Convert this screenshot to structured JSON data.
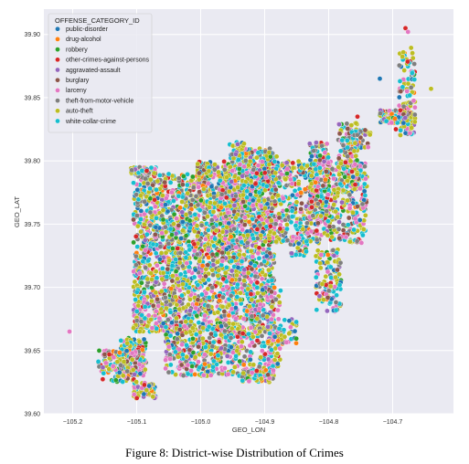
{
  "chart_data": {
    "type": "scatter",
    "title": "",
    "xlabel": "GEO_LON",
    "ylabel": "GEO_LAT",
    "xlim": [
      -105.245,
      -104.605
    ],
    "ylim": [
      39.6,
      39.92
    ],
    "xticks": [
      -105.2,
      -105.1,
      -105.0,
      -104.9,
      -104.8,
      -104.7
    ],
    "xtick_labels": [
      "−105.2",
      "−105.1",
      "−105.0",
      "−104.9",
      "−104.8",
      "−104.7"
    ],
    "yticks": [
      39.6,
      39.65,
      39.7,
      39.75,
      39.8,
      39.85,
      39.9
    ],
    "ytick_labels": [
      "39.60",
      "39.65",
      "39.70",
      "39.75",
      "39.80",
      "39.85",
      "39.90"
    ],
    "grid": true,
    "legend_title": "OFFENSE_CATEGORY_ID",
    "legend_position": "top-left",
    "background": "#eaeaf2",
    "series": [
      {
        "name": "public-disorder",
        "color": "#1f77b4"
      },
      {
        "name": "drug-alcohol",
        "color": "#ff7f0e"
      },
      {
        "name": "robbery",
        "color": "#2ca02c"
      },
      {
        "name": "other-crimes-against-persons",
        "color": "#d62728"
      },
      {
        "name": "aggravated-assault",
        "color": "#9467bd"
      },
      {
        "name": "burglary",
        "color": "#8c564b"
      },
      {
        "name": "larceny",
        "color": "#e377c2"
      },
      {
        "name": "theft-from-motor-vehicle",
        "color": "#7f7f7f"
      },
      {
        "name": "auto-theft",
        "color": "#bcbd22"
      },
      {
        "name": "white-collar-crime",
        "color": "#17becf"
      }
    ],
    "outliers": [
      {
        "x": -105.205,
        "y": 39.665,
        "series": "larceny"
      },
      {
        "x": -104.68,
        "y": 39.905,
        "series": "other-crimes-against-persons"
      },
      {
        "x": -104.676,
        "y": 39.902,
        "series": "larceny"
      },
      {
        "x": -104.72,
        "y": 39.865,
        "series": "public-disorder"
      },
      {
        "x": -104.64,
        "y": 39.857,
        "series": "auto-theft"
      },
      {
        "x": -104.755,
        "y": 39.835,
        "series": "other-crimes-against-persons"
      },
      {
        "x": -104.683,
        "y": 39.83,
        "series": "public-disorder"
      },
      {
        "x": -104.673,
        "y": 39.822,
        "series": "larceny"
      },
      {
        "x": -104.695,
        "y": 39.825,
        "series": "other-crimes-against-persons"
      }
    ]
  },
  "caption": "Figure 8:  District-wise Distribution of Crimes"
}
